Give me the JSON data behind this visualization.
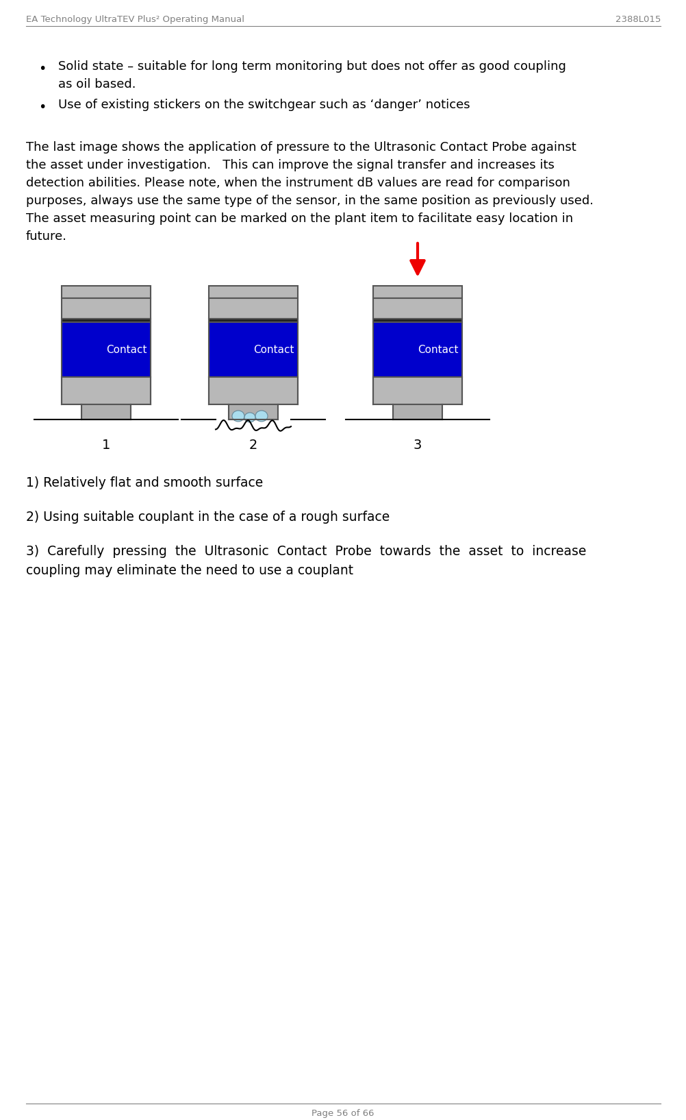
{
  "header_left": "EA Technology UltraTEV Plus² Operating Manual",
  "header_right": "2388L015",
  "footer": "Page 56 of 66",
  "bullet1_line1": "Solid state – suitable for long term monitoring but does not offer as good coupling",
  "bullet1_line2": "as oil based.",
  "bullet2": "Use of existing stickers on the switchgear such as ‘danger’ notices",
  "para_lines": [
    "The last image shows the application of pressure to the Ultrasonic Contact Probe against",
    "the asset under investigation.   This can improve the signal transfer and increases its",
    "detection abilities. Please note, when the instrument dB values are read for comparison",
    "purposes, always use the same type of the sensor, in the same position as previously used.",
    "The asset measuring point can be marked on the plant item to facilitate easy location in",
    "future."
  ],
  "caption1": "1) Relatively flat and smooth surface",
  "caption2": "2) Using suitable couplant in the case of a rough surface",
  "caption3_line1": "3)  Carefully  pressing  the  Ultrasonic  Contact  Probe  towards  the  asset  to  increase",
  "caption3_line2": "coupling may eliminate the need to use a couplant",
  "label1": "1",
  "label2": "2",
  "label3": "3",
  "contact_text": "Contact",
  "bg_color": "#ffffff",
  "text_color": "#000000",
  "header_color": "#808080",
  "blue_color": "#0000cc",
  "gray_top": "#b8b8b8",
  "gray_bot": "#b8b8b8",
  "gray_strip": "#909090",
  "gray_tip": "#b0b0b0",
  "outline_color": "#555555",
  "red_color": "#ee0000",
  "couplant_color": "#aaddee"
}
